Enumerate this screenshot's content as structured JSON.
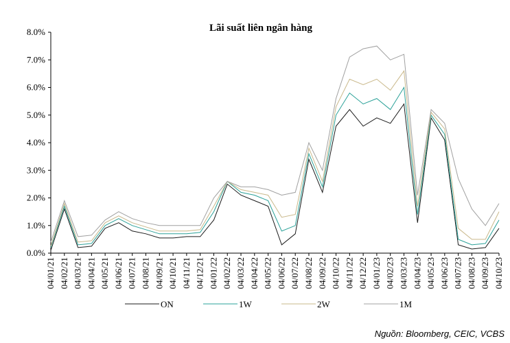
{
  "chart_data": {
    "type": "line",
    "title": "Lãi suất liên ngân hàng",
    "xlabel": "",
    "ylabel": "",
    "ylim": [
      0,
      8
    ],
    "y_ticks": [
      "0.0%",
      "1.0%",
      "2.0%",
      "3.0%",
      "4.0%",
      "5.0%",
      "6.0%",
      "7.0%",
      "8.0%"
    ],
    "x_ticks": [
      "04/01/21",
      "04/02/21",
      "04/03/21",
      "04/04/21",
      "04/05/21",
      "04/06/21",
      "04/07/21",
      "04/08/21",
      "04/09/21",
      "04/10/21",
      "04/11/21",
      "04/12/21",
      "04/01/22",
      "04/02/22",
      "04/03/22",
      "04/04/22",
      "04/05/22",
      "04/06/22",
      "04/07/22",
      "04/08/22",
      "04/09/22",
      "04/10/22",
      "04/11/22",
      "04/12/22",
      "04/01/23",
      "04/02/23",
      "04/03/23",
      "04/04/23",
      "04/05/23",
      "04/06/23",
      "04/07/23",
      "04/08/23",
      "04/09/23",
      "04/10/23"
    ],
    "legend_position": "bottom",
    "series": [
      {
        "name": "ON",
        "color": "#1a1a1a",
        "values": [
          0.1,
          1.6,
          0.2,
          0.25,
          0.9,
          1.1,
          0.8,
          0.7,
          0.55,
          0.55,
          0.6,
          0.6,
          1.2,
          2.5,
          2.1,
          1.9,
          1.7,
          0.3,
          0.7,
          3.4,
          2.2,
          4.6,
          5.2,
          4.6,
          4.9,
          4.7,
          5.4,
          1.1,
          4.9,
          4.1,
          0.3,
          0.15,
          0.2,
          0.9
        ]
      },
      {
        "name": "1W",
        "color": "#2aa198",
        "values": [
          0.2,
          1.7,
          0.3,
          0.35,
          1.0,
          1.25,
          1.0,
          0.85,
          0.7,
          0.7,
          0.7,
          0.75,
          1.5,
          2.6,
          2.2,
          2.1,
          1.9,
          0.8,
          1.0,
          3.6,
          2.4,
          5.0,
          5.8,
          5.4,
          5.6,
          5.2,
          6.0,
          1.4,
          5.0,
          4.3,
          0.5,
          0.3,
          0.35,
          1.2
        ]
      },
      {
        "name": "2W",
        "color": "#c9b88a",
        "values": [
          0.25,
          1.8,
          0.4,
          0.45,
          1.1,
          1.35,
          1.1,
          0.95,
          0.8,
          0.8,
          0.8,
          0.85,
          1.7,
          2.6,
          2.3,
          2.2,
          2.1,
          1.3,
          1.4,
          3.8,
          2.6,
          5.3,
          6.3,
          6.1,
          6.3,
          5.9,
          6.6,
          1.7,
          5.1,
          4.5,
          0.9,
          0.5,
          0.5,
          1.5
        ]
      },
      {
        "name": "1M",
        "color": "#a0a0a0",
        "values": [
          0.4,
          1.9,
          0.6,
          0.65,
          1.2,
          1.5,
          1.25,
          1.1,
          1.0,
          1.0,
          1.0,
          1.0,
          2.0,
          2.6,
          2.4,
          2.4,
          2.3,
          2.1,
          2.2,
          4.0,
          3.0,
          5.6,
          7.1,
          7.4,
          7.5,
          7.0,
          7.2,
          2.1,
          5.2,
          4.7,
          2.7,
          1.6,
          1.0,
          1.8
        ]
      }
    ]
  },
  "source": "Nguồn: Bloomberg, CEIC, VCBS"
}
